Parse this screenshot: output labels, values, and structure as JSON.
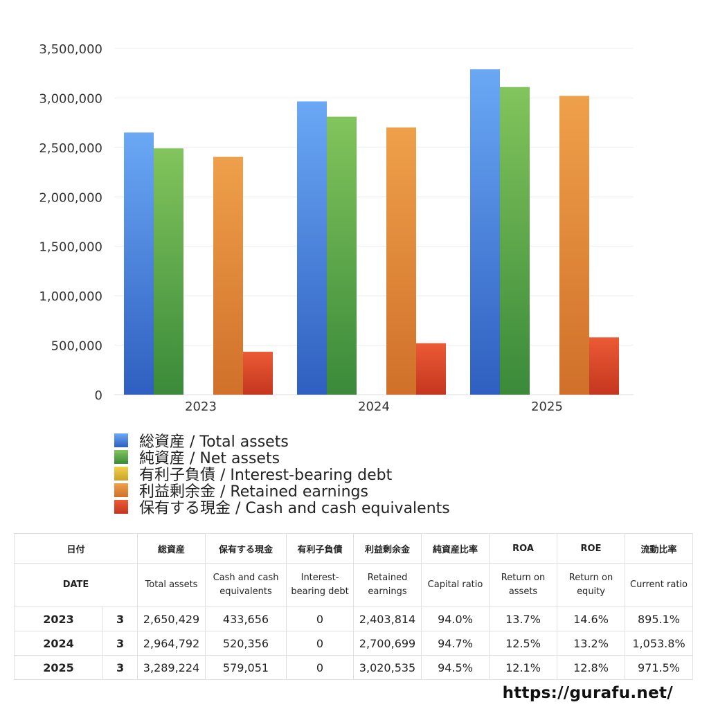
{
  "chart_data": {
    "type": "bar",
    "categories": [
      "2023",
      "2024",
      "2025"
    ],
    "ylim": [
      0,
      3500000
    ],
    "yticks": [
      "0",
      "500,000",
      "1,000,000",
      "1,500,000",
      "2,000,000",
      "2,500,000",
      "3,000,000",
      "3,500,000"
    ],
    "grid": true,
    "legend_position": "bottom",
    "series": [
      {
        "name": "総資産 / Total assets",
        "values": [
          2650429,
          2964792,
          3289224
        ],
        "color_top": "#6aa8f5",
        "color_bottom": "#2f5fc0"
      },
      {
        "name": "純資産 / Net assets",
        "values": [
          2490000,
          2810000,
          3110000
        ],
        "color_top": "#82c45c",
        "color_bottom": "#3a8a3a"
      },
      {
        "name": "有利子負債 / Interest-bearing debt",
        "values": [
          0,
          0,
          0
        ],
        "color_top": "#f2d24a",
        "color_bottom": "#c9a227"
      },
      {
        "name": "利益剰余金 / Retained earnings",
        "values": [
          2403814,
          2700699,
          3020535
        ],
        "color_top": "#efa04a",
        "color_bottom": "#d0702a"
      },
      {
        "name": "保有する現金 /  Cash and cash equivalents",
        "values": [
          433656,
          520356,
          579051
        ],
        "color_top": "#ec5a35",
        "color_bottom": "#c4361f"
      }
    ]
  },
  "table": {
    "headers_ja": [
      "日付",
      "総資産",
      "保有する現金",
      "有利子負債",
      "利益剰余金",
      "純資産比率",
      "ROA",
      "ROE",
      "流動比率"
    ],
    "headers_en": [
      "DATE",
      "Total assets",
      "Cash and cash equivalents",
      "Interest-bearing debt",
      "Retained earnings",
      "Capital ratio",
      "Return on assets",
      "Return on equity",
      "Current ratio"
    ],
    "rows": [
      {
        "year": "2023",
        "month": "3",
        "total_assets": "2,650,429",
        "cash": "433,656",
        "debt": "0",
        "retained": "2,403,814",
        "capital_ratio": "94.0%",
        "roa": "13.7%",
        "roe": "14.6%",
        "current_ratio": "895.1%"
      },
      {
        "year": "2024",
        "month": "3",
        "total_assets": "2,964,792",
        "cash": "520,356",
        "debt": "0",
        "retained": "2,700,699",
        "capital_ratio": "94.7%",
        "roa": "12.5%",
        "roe": "13.2%",
        "current_ratio": "1,053.8%"
      },
      {
        "year": "2025",
        "month": "3",
        "total_assets": "3,289,224",
        "cash": "579,051",
        "debt": "0",
        "retained": "3,020,535",
        "capital_ratio": "94.5%",
        "roa": "12.1%",
        "roe": "12.8%",
        "current_ratio": "971.5%"
      }
    ]
  },
  "footer": {
    "url": "https://gurafu.net/"
  }
}
